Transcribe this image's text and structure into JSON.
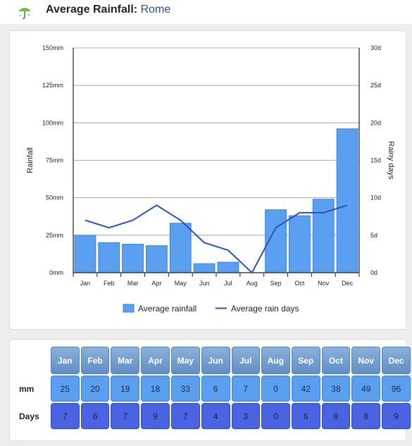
{
  "header": {
    "title_prefix": "Average Rainfall:",
    "city": "Rome",
    "icon": "umbrella-icon"
  },
  "chart_data": {
    "type": "bar",
    "categories": [
      "Jan",
      "Feb",
      "Mar",
      "Apr",
      "May",
      "Jun",
      "Jul",
      "Aug",
      "Sep",
      "Oct",
      "Nov",
      "Dec"
    ],
    "series": [
      {
        "name": "Average rainfall",
        "type": "bar",
        "axis": "left",
        "values": [
          25,
          20,
          19,
          18,
          33,
          6,
          7,
          0,
          42,
          38,
          49,
          96
        ],
        "color": "#5a9ff0"
      },
      {
        "name": "Average rain days",
        "type": "line",
        "axis": "right",
        "values": [
          7,
          6,
          7,
          9,
          7,
          4,
          3,
          0,
          6,
          8,
          8,
          9
        ],
        "color": "#2f4fb8"
      }
    ],
    "ylabel": "Rainfall",
    "y2label": "Rainy days",
    "ylim": [
      0,
      150
    ],
    "y2lim": [
      0,
      30
    ],
    "yticks": [
      "0mm",
      "25mm",
      "50mm",
      "75mm",
      "100mm",
      "125mm",
      "150mm"
    ],
    "y2ticks": [
      "0d",
      "5d",
      "10d",
      "15d",
      "20d",
      "25d",
      "30d"
    ],
    "grid": true,
    "legend": "bottom"
  },
  "table": {
    "months": [
      "Jan",
      "Feb",
      "Mar",
      "Apr",
      "May",
      "Jun",
      "Jul",
      "Aug",
      "Sep",
      "Oct",
      "Nov",
      "Dec"
    ],
    "mm_label": "mm",
    "days_label": "Days",
    "mm": [
      "25",
      "20",
      "19",
      "18",
      "33",
      "6",
      "7",
      "0",
      "42",
      "38",
      "49",
      "96"
    ],
    "days": [
      "7",
      "6",
      "7",
      "9",
      "7",
      "4",
      "3",
      "0",
      "6",
      "8",
      "8",
      "9"
    ]
  }
}
